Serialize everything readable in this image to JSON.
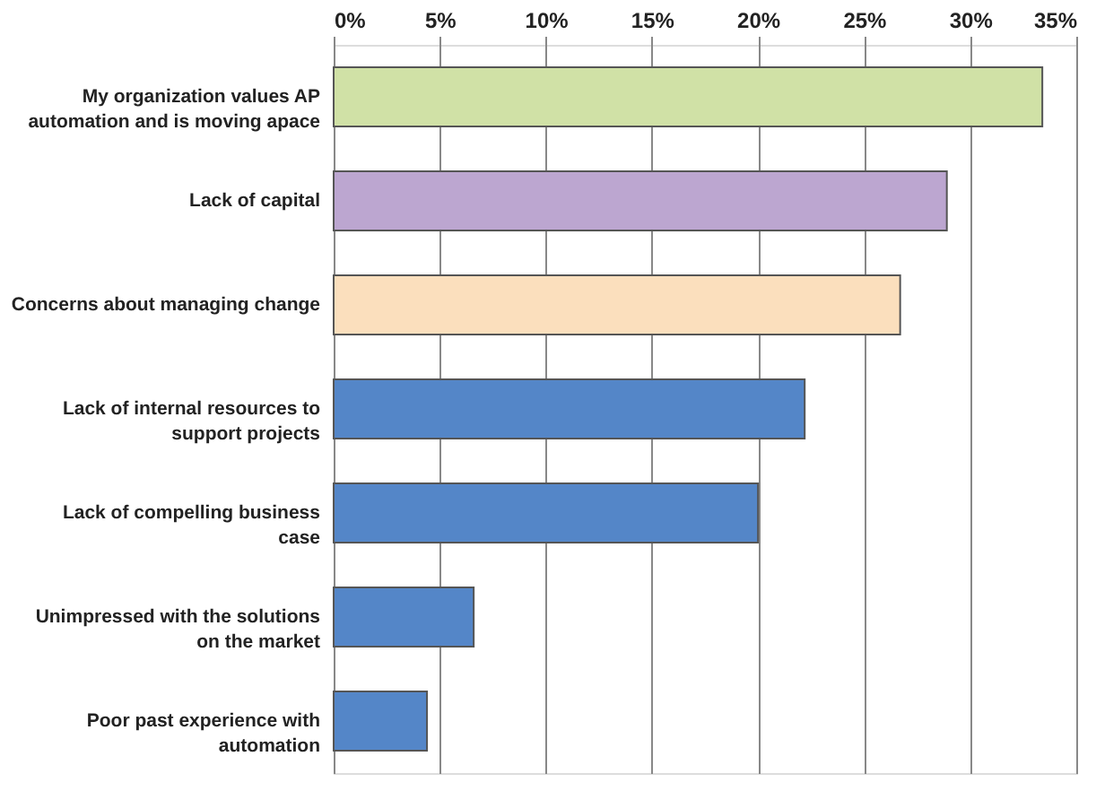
{
  "chart_data": {
    "type": "bar",
    "orientation": "horizontal",
    "categories": [
      "My organization values AP automation and is moving apace",
      "Lack of capital",
      "Concerns about managing change",
      "Lack of internal resources to support projects",
      "Lack of compelling business case",
      "Unimpressed with the solutions on the market",
      "Poor past experience with automation"
    ],
    "values": [
      33.4,
      28.9,
      26.7,
      22.2,
      20.0,
      6.6,
      4.4
    ],
    "colors": [
      "#d0e1a6",
      "#bca6d0",
      "#fbdfbd",
      "#5486c8",
      "#5486c8",
      "#5486c8",
      "#5486c8"
    ],
    "xlim": [
      0,
      35
    ],
    "xticks": [
      {
        "value": 0,
        "label": "0%"
      },
      {
        "value": 5,
        "label": "5%"
      },
      {
        "value": 10,
        "label": "10%"
      },
      {
        "value": 15,
        "label": "15%"
      },
      {
        "value": 20,
        "label": "20%"
      },
      {
        "value": 25,
        "label": "25%"
      },
      {
        "value": 30,
        "label": "30%"
      },
      {
        "value": 35,
        "label": "35%"
      }
    ],
    "grid": "x"
  }
}
